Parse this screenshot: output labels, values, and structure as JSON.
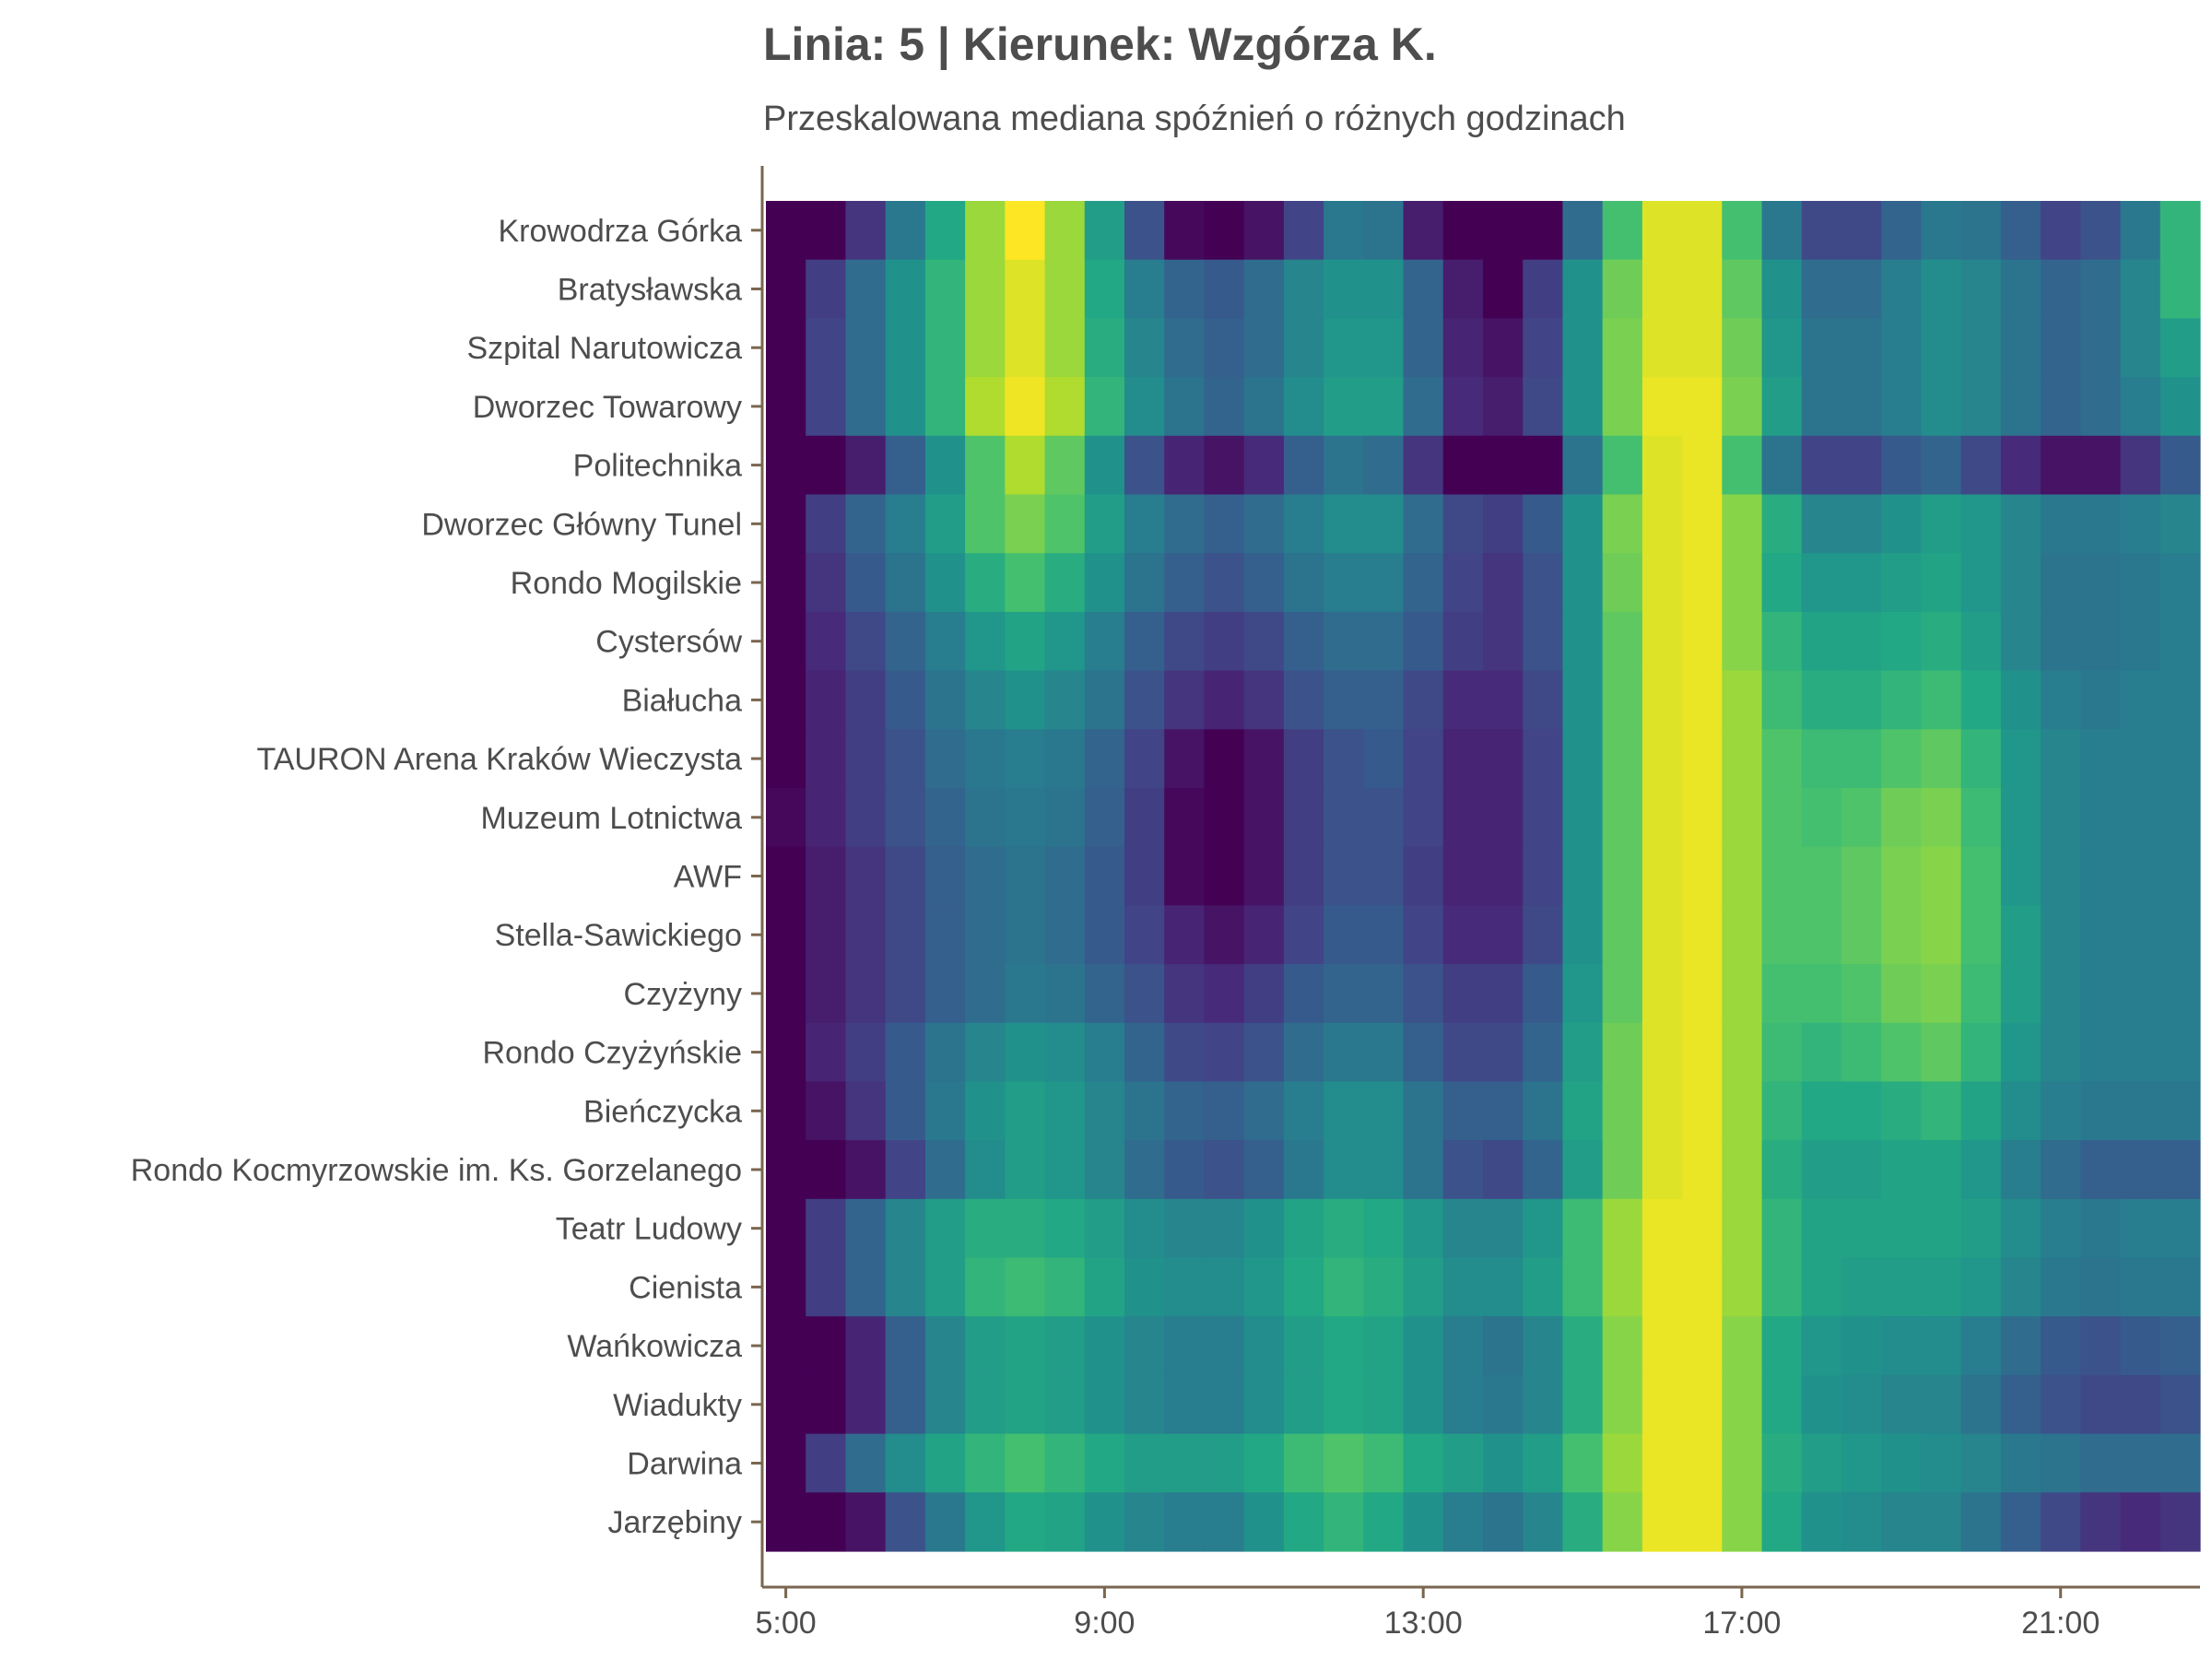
{
  "chart_data": {
    "type": "heatmap",
    "title": "Linia: 5 | Kierunek: Wzgórza K.",
    "subtitle": "Przeskalowana mediana spóźnień o różnych godzinach",
    "xlabel": "",
    "ylabel": "",
    "x_start_hour": 5,
    "x_end_hour": 23,
    "x_step_hours": 0.5,
    "x_ticks": [
      "5:00",
      "9:00",
      "13:00",
      "17:00",
      "21:00"
    ],
    "x_tick_hours": [
      5,
      9,
      13,
      17,
      21
    ],
    "stops": [
      "Krowodrza Górka",
      "Bratysławska",
      "Szpital Narutowicza",
      "Dworzec Towarowy",
      "Politechnika",
      "Dworzec Główny Tunel",
      "Rondo Mogilskie",
      "Cystersów",
      "Białucha",
      "TAURON Arena Kraków Wieczysta",
      "Muzeum Lotnictwa",
      "AWF",
      "Stella-Sawickiego",
      "Czyżyny",
      "Rondo Czyżyńskie",
      "Bieńczycka",
      "Rondo Kocmyrzowskie im. Ks. Gorzelanego",
      "Teatr Ludowy",
      "Cienista",
      "Wańkowicza",
      "Wiadukty",
      "Darwina",
      "Jarzębiny"
    ],
    "values": [
      [
        0.0,
        0.0,
        0.15,
        0.4,
        0.6,
        0.85,
        1.0,
        0.85,
        0.55,
        0.25,
        0.02,
        0.0,
        0.05,
        0.2,
        0.4,
        0.38,
        0.08,
        0.0,
        0.0,
        0.0,
        0.35,
        0.7,
        0.95,
        0.95,
        0.7,
        0.4,
        0.22,
        0.22,
        0.32,
        0.4,
        0.38,
        0.3,
        0.2,
        0.25,
        0.4,
        0.65
      ],
      [
        0.0,
        0.18,
        0.35,
        0.5,
        0.65,
        0.85,
        0.95,
        0.85,
        0.6,
        0.42,
        0.32,
        0.28,
        0.35,
        0.45,
        0.5,
        0.5,
        0.32,
        0.08,
        0.0,
        0.18,
        0.5,
        0.78,
        0.95,
        0.95,
        0.75,
        0.5,
        0.35,
        0.35,
        0.42,
        0.48,
        0.45,
        0.38,
        0.32,
        0.35,
        0.45,
        0.65
      ],
      [
        0.0,
        0.2,
        0.35,
        0.5,
        0.65,
        0.85,
        0.95,
        0.85,
        0.62,
        0.45,
        0.35,
        0.3,
        0.35,
        0.45,
        0.52,
        0.52,
        0.32,
        0.1,
        0.05,
        0.2,
        0.5,
        0.8,
        0.95,
        0.95,
        0.78,
        0.52,
        0.38,
        0.38,
        0.42,
        0.48,
        0.45,
        0.38,
        0.32,
        0.35,
        0.45,
        0.55
      ],
      [
        0.0,
        0.2,
        0.35,
        0.5,
        0.65,
        0.88,
        0.98,
        0.88,
        0.65,
        0.48,
        0.38,
        0.32,
        0.38,
        0.48,
        0.55,
        0.55,
        0.35,
        0.12,
        0.08,
        0.22,
        0.5,
        0.8,
        0.97,
        0.97,
        0.8,
        0.55,
        0.38,
        0.38,
        0.42,
        0.48,
        0.45,
        0.38,
        0.32,
        0.35,
        0.42,
        0.5
      ],
      [
        0.0,
        0.0,
        0.08,
        0.3,
        0.5,
        0.72,
        0.88,
        0.75,
        0.5,
        0.25,
        0.1,
        0.05,
        0.12,
        0.3,
        0.38,
        0.35,
        0.15,
        0.0,
        0.0,
        0.0,
        0.38,
        0.7,
        0.95,
        0.97,
        0.7,
        0.38,
        0.2,
        0.2,
        0.28,
        0.32,
        0.22,
        0.12,
        0.05,
        0.05,
        0.15,
        0.28
      ],
      [
        0.0,
        0.18,
        0.32,
        0.42,
        0.55,
        0.72,
        0.8,
        0.72,
        0.55,
        0.42,
        0.35,
        0.3,
        0.35,
        0.42,
        0.48,
        0.48,
        0.35,
        0.22,
        0.18,
        0.28,
        0.5,
        0.8,
        0.95,
        0.97,
        0.82,
        0.62,
        0.45,
        0.45,
        0.5,
        0.55,
        0.52,
        0.45,
        0.4,
        0.4,
        0.42,
        0.45
      ],
      [
        0.0,
        0.15,
        0.28,
        0.38,
        0.5,
        0.62,
        0.7,
        0.62,
        0.5,
        0.38,
        0.3,
        0.25,
        0.3,
        0.38,
        0.42,
        0.42,
        0.32,
        0.2,
        0.15,
        0.25,
        0.5,
        0.78,
        0.95,
        0.97,
        0.82,
        0.6,
        0.52,
        0.52,
        0.55,
        0.58,
        0.52,
        0.45,
        0.38,
        0.38,
        0.4,
        0.42
      ],
      [
        0.0,
        0.12,
        0.22,
        0.32,
        0.42,
        0.52,
        0.58,
        0.52,
        0.42,
        0.3,
        0.22,
        0.18,
        0.22,
        0.3,
        0.35,
        0.35,
        0.28,
        0.18,
        0.15,
        0.25,
        0.5,
        0.75,
        0.95,
        0.97,
        0.82,
        0.65,
        0.58,
        0.58,
        0.6,
        0.62,
        0.55,
        0.45,
        0.38,
        0.38,
        0.4,
        0.42
      ],
      [
        0.0,
        0.1,
        0.18,
        0.28,
        0.38,
        0.45,
        0.5,
        0.45,
        0.38,
        0.25,
        0.15,
        0.1,
        0.15,
        0.25,
        0.3,
        0.3,
        0.22,
        0.12,
        0.12,
        0.22,
        0.5,
        0.75,
        0.95,
        0.97,
        0.85,
        0.68,
        0.62,
        0.62,
        0.65,
        0.68,
        0.6,
        0.5,
        0.42,
        0.4,
        0.42,
        0.42
      ],
      [
        0.0,
        0.1,
        0.18,
        0.25,
        0.35,
        0.4,
        0.42,
        0.4,
        0.32,
        0.2,
        0.05,
        0.0,
        0.05,
        0.18,
        0.25,
        0.28,
        0.2,
        0.1,
        0.1,
        0.2,
        0.5,
        0.75,
        0.95,
        0.97,
        0.85,
        0.72,
        0.68,
        0.68,
        0.72,
        0.75,
        0.65,
        0.52,
        0.45,
        0.42,
        0.42,
        0.42
      ],
      [
        0.02,
        0.1,
        0.18,
        0.25,
        0.32,
        0.38,
        0.4,
        0.38,
        0.3,
        0.18,
        0.02,
        0.0,
        0.05,
        0.18,
        0.25,
        0.25,
        0.2,
        0.1,
        0.1,
        0.2,
        0.5,
        0.75,
        0.95,
        0.97,
        0.85,
        0.72,
        0.7,
        0.72,
        0.78,
        0.8,
        0.68,
        0.52,
        0.45,
        0.42,
        0.42,
        0.42
      ],
      [
        0.0,
        0.08,
        0.15,
        0.22,
        0.3,
        0.35,
        0.38,
        0.35,
        0.28,
        0.18,
        0.02,
        0.0,
        0.05,
        0.18,
        0.25,
        0.25,
        0.18,
        0.1,
        0.1,
        0.2,
        0.5,
        0.75,
        0.95,
        0.97,
        0.85,
        0.72,
        0.72,
        0.75,
        0.8,
        0.82,
        0.7,
        0.52,
        0.45,
        0.42,
        0.42,
        0.42
      ],
      [
        0.0,
        0.08,
        0.15,
        0.22,
        0.3,
        0.35,
        0.38,
        0.35,
        0.28,
        0.2,
        0.1,
        0.05,
        0.1,
        0.2,
        0.28,
        0.28,
        0.2,
        0.12,
        0.12,
        0.22,
        0.5,
        0.75,
        0.95,
        0.97,
        0.85,
        0.72,
        0.72,
        0.75,
        0.8,
        0.82,
        0.7,
        0.55,
        0.45,
        0.42,
        0.42,
        0.42
      ],
      [
        0.0,
        0.08,
        0.15,
        0.22,
        0.3,
        0.35,
        0.4,
        0.38,
        0.32,
        0.25,
        0.15,
        0.12,
        0.18,
        0.28,
        0.32,
        0.32,
        0.25,
        0.18,
        0.18,
        0.28,
        0.52,
        0.75,
        0.95,
        0.97,
        0.85,
        0.7,
        0.7,
        0.72,
        0.78,
        0.8,
        0.68,
        0.55,
        0.45,
        0.42,
        0.42,
        0.42
      ],
      [
        0.0,
        0.1,
        0.18,
        0.28,
        0.38,
        0.45,
        0.5,
        0.48,
        0.42,
        0.32,
        0.22,
        0.2,
        0.25,
        0.35,
        0.4,
        0.4,
        0.3,
        0.22,
        0.22,
        0.32,
        0.55,
        0.78,
        0.95,
        0.97,
        0.85,
        0.68,
        0.65,
        0.68,
        0.72,
        0.75,
        0.65,
        0.52,
        0.45,
        0.42,
        0.42,
        0.42
      ],
      [
        0.0,
        0.05,
        0.15,
        0.28,
        0.4,
        0.5,
        0.55,
        0.52,
        0.45,
        0.38,
        0.32,
        0.3,
        0.35,
        0.42,
        0.48,
        0.48,
        0.38,
        0.3,
        0.3,
        0.38,
        0.58,
        0.78,
        0.95,
        0.97,
        0.85,
        0.65,
        0.6,
        0.6,
        0.62,
        0.65,
        0.58,
        0.48,
        0.42,
        0.4,
        0.4,
        0.4
      ],
      [
        0.0,
        0.0,
        0.05,
        0.2,
        0.35,
        0.48,
        0.55,
        0.52,
        0.45,
        0.35,
        0.28,
        0.25,
        0.3,
        0.4,
        0.48,
        0.48,
        0.38,
        0.25,
        0.22,
        0.32,
        0.55,
        0.78,
        0.95,
        0.97,
        0.85,
        0.62,
        0.55,
        0.55,
        0.58,
        0.58,
        0.52,
        0.42,
        0.35,
        0.3,
        0.3,
        0.3
      ],
      [
        0.0,
        0.18,
        0.32,
        0.45,
        0.55,
        0.62,
        0.62,
        0.6,
        0.55,
        0.48,
        0.45,
        0.45,
        0.5,
        0.58,
        0.62,
        0.6,
        0.52,
        0.45,
        0.45,
        0.52,
        0.68,
        0.85,
        0.97,
        0.97,
        0.85,
        0.65,
        0.58,
        0.58,
        0.58,
        0.58,
        0.55,
        0.48,
        0.42,
        0.4,
        0.42,
        0.42
      ],
      [
        0.0,
        0.18,
        0.32,
        0.45,
        0.55,
        0.65,
        0.68,
        0.65,
        0.58,
        0.5,
        0.48,
        0.48,
        0.52,
        0.6,
        0.65,
        0.62,
        0.55,
        0.48,
        0.48,
        0.55,
        0.68,
        0.85,
        0.97,
        0.97,
        0.85,
        0.65,
        0.58,
        0.55,
        0.55,
        0.55,
        0.52,
        0.45,
        0.4,
        0.38,
        0.4,
        0.4
      ],
      [
        0.0,
        0.0,
        0.1,
        0.3,
        0.45,
        0.55,
        0.58,
        0.55,
        0.5,
        0.45,
        0.42,
        0.42,
        0.48,
        0.55,
        0.6,
        0.58,
        0.5,
        0.42,
        0.38,
        0.45,
        0.62,
        0.82,
        0.97,
        0.97,
        0.82,
        0.6,
        0.52,
        0.5,
        0.48,
        0.48,
        0.42,
        0.35,
        0.28,
        0.25,
        0.28,
        0.3
      ],
      [
        0.0,
        0.0,
        0.1,
        0.3,
        0.45,
        0.55,
        0.58,
        0.55,
        0.5,
        0.45,
        0.42,
        0.42,
        0.48,
        0.55,
        0.6,
        0.58,
        0.5,
        0.42,
        0.4,
        0.45,
        0.62,
        0.82,
        0.97,
        0.97,
        0.82,
        0.6,
        0.5,
        0.48,
        0.45,
        0.45,
        0.38,
        0.3,
        0.25,
        0.22,
        0.22,
        0.25
      ],
      [
        0.0,
        0.18,
        0.35,
        0.48,
        0.58,
        0.65,
        0.7,
        0.65,
        0.6,
        0.55,
        0.55,
        0.55,
        0.6,
        0.68,
        0.72,
        0.68,
        0.6,
        0.55,
        0.5,
        0.55,
        0.7,
        0.85,
        0.97,
        0.97,
        0.82,
        0.62,
        0.55,
        0.52,
        0.5,
        0.48,
        0.45,
        0.4,
        0.38,
        0.35,
        0.35,
        0.35
      ],
      [
        0.0,
        0.0,
        0.05,
        0.25,
        0.4,
        0.52,
        0.6,
        0.58,
        0.5,
        0.45,
        0.42,
        0.42,
        0.5,
        0.6,
        0.65,
        0.6,
        0.5,
        0.42,
        0.38,
        0.45,
        0.62,
        0.82,
        0.97,
        0.97,
        0.82,
        0.6,
        0.5,
        0.48,
        0.45,
        0.45,
        0.38,
        0.3,
        0.22,
        0.15,
        0.12,
        0.15
      ]
    ],
    "color_scale": "viridis",
    "legend": "none",
    "grid": false
  }
}
